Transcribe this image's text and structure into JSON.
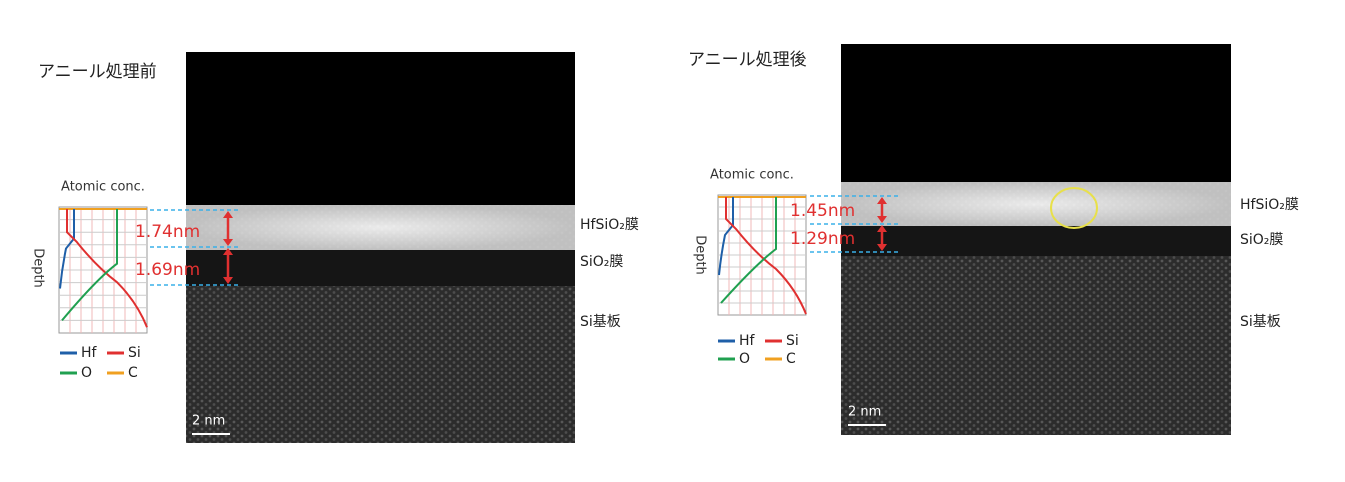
{
  "panels": [
    {
      "title": "アニール処理前",
      "profile_title": "Atomic conc.",
      "depth_label": "Depth",
      "thicknesses": [
        "1.74nm",
        "1.69nm"
      ],
      "layer_labels": [
        "HfSiO₂膜",
        "SiO₂膜",
        "Si基板"
      ],
      "scale_bar": "2 nm",
      "legend": [
        "Hf",
        "Si",
        "O",
        "C"
      ]
    },
    {
      "title": "アニール処理後",
      "profile_title": "Atomic conc.",
      "depth_label": "Depth",
      "thicknesses": [
        "1.45nm",
        "1.29nm"
      ],
      "layer_labels": [
        "HfSiO₂膜",
        "SiO₂膜",
        "Si基板"
      ],
      "scale_bar": "2 nm",
      "legend": [
        "Hf",
        "Si",
        "O",
        "C"
      ]
    }
  ]
}
